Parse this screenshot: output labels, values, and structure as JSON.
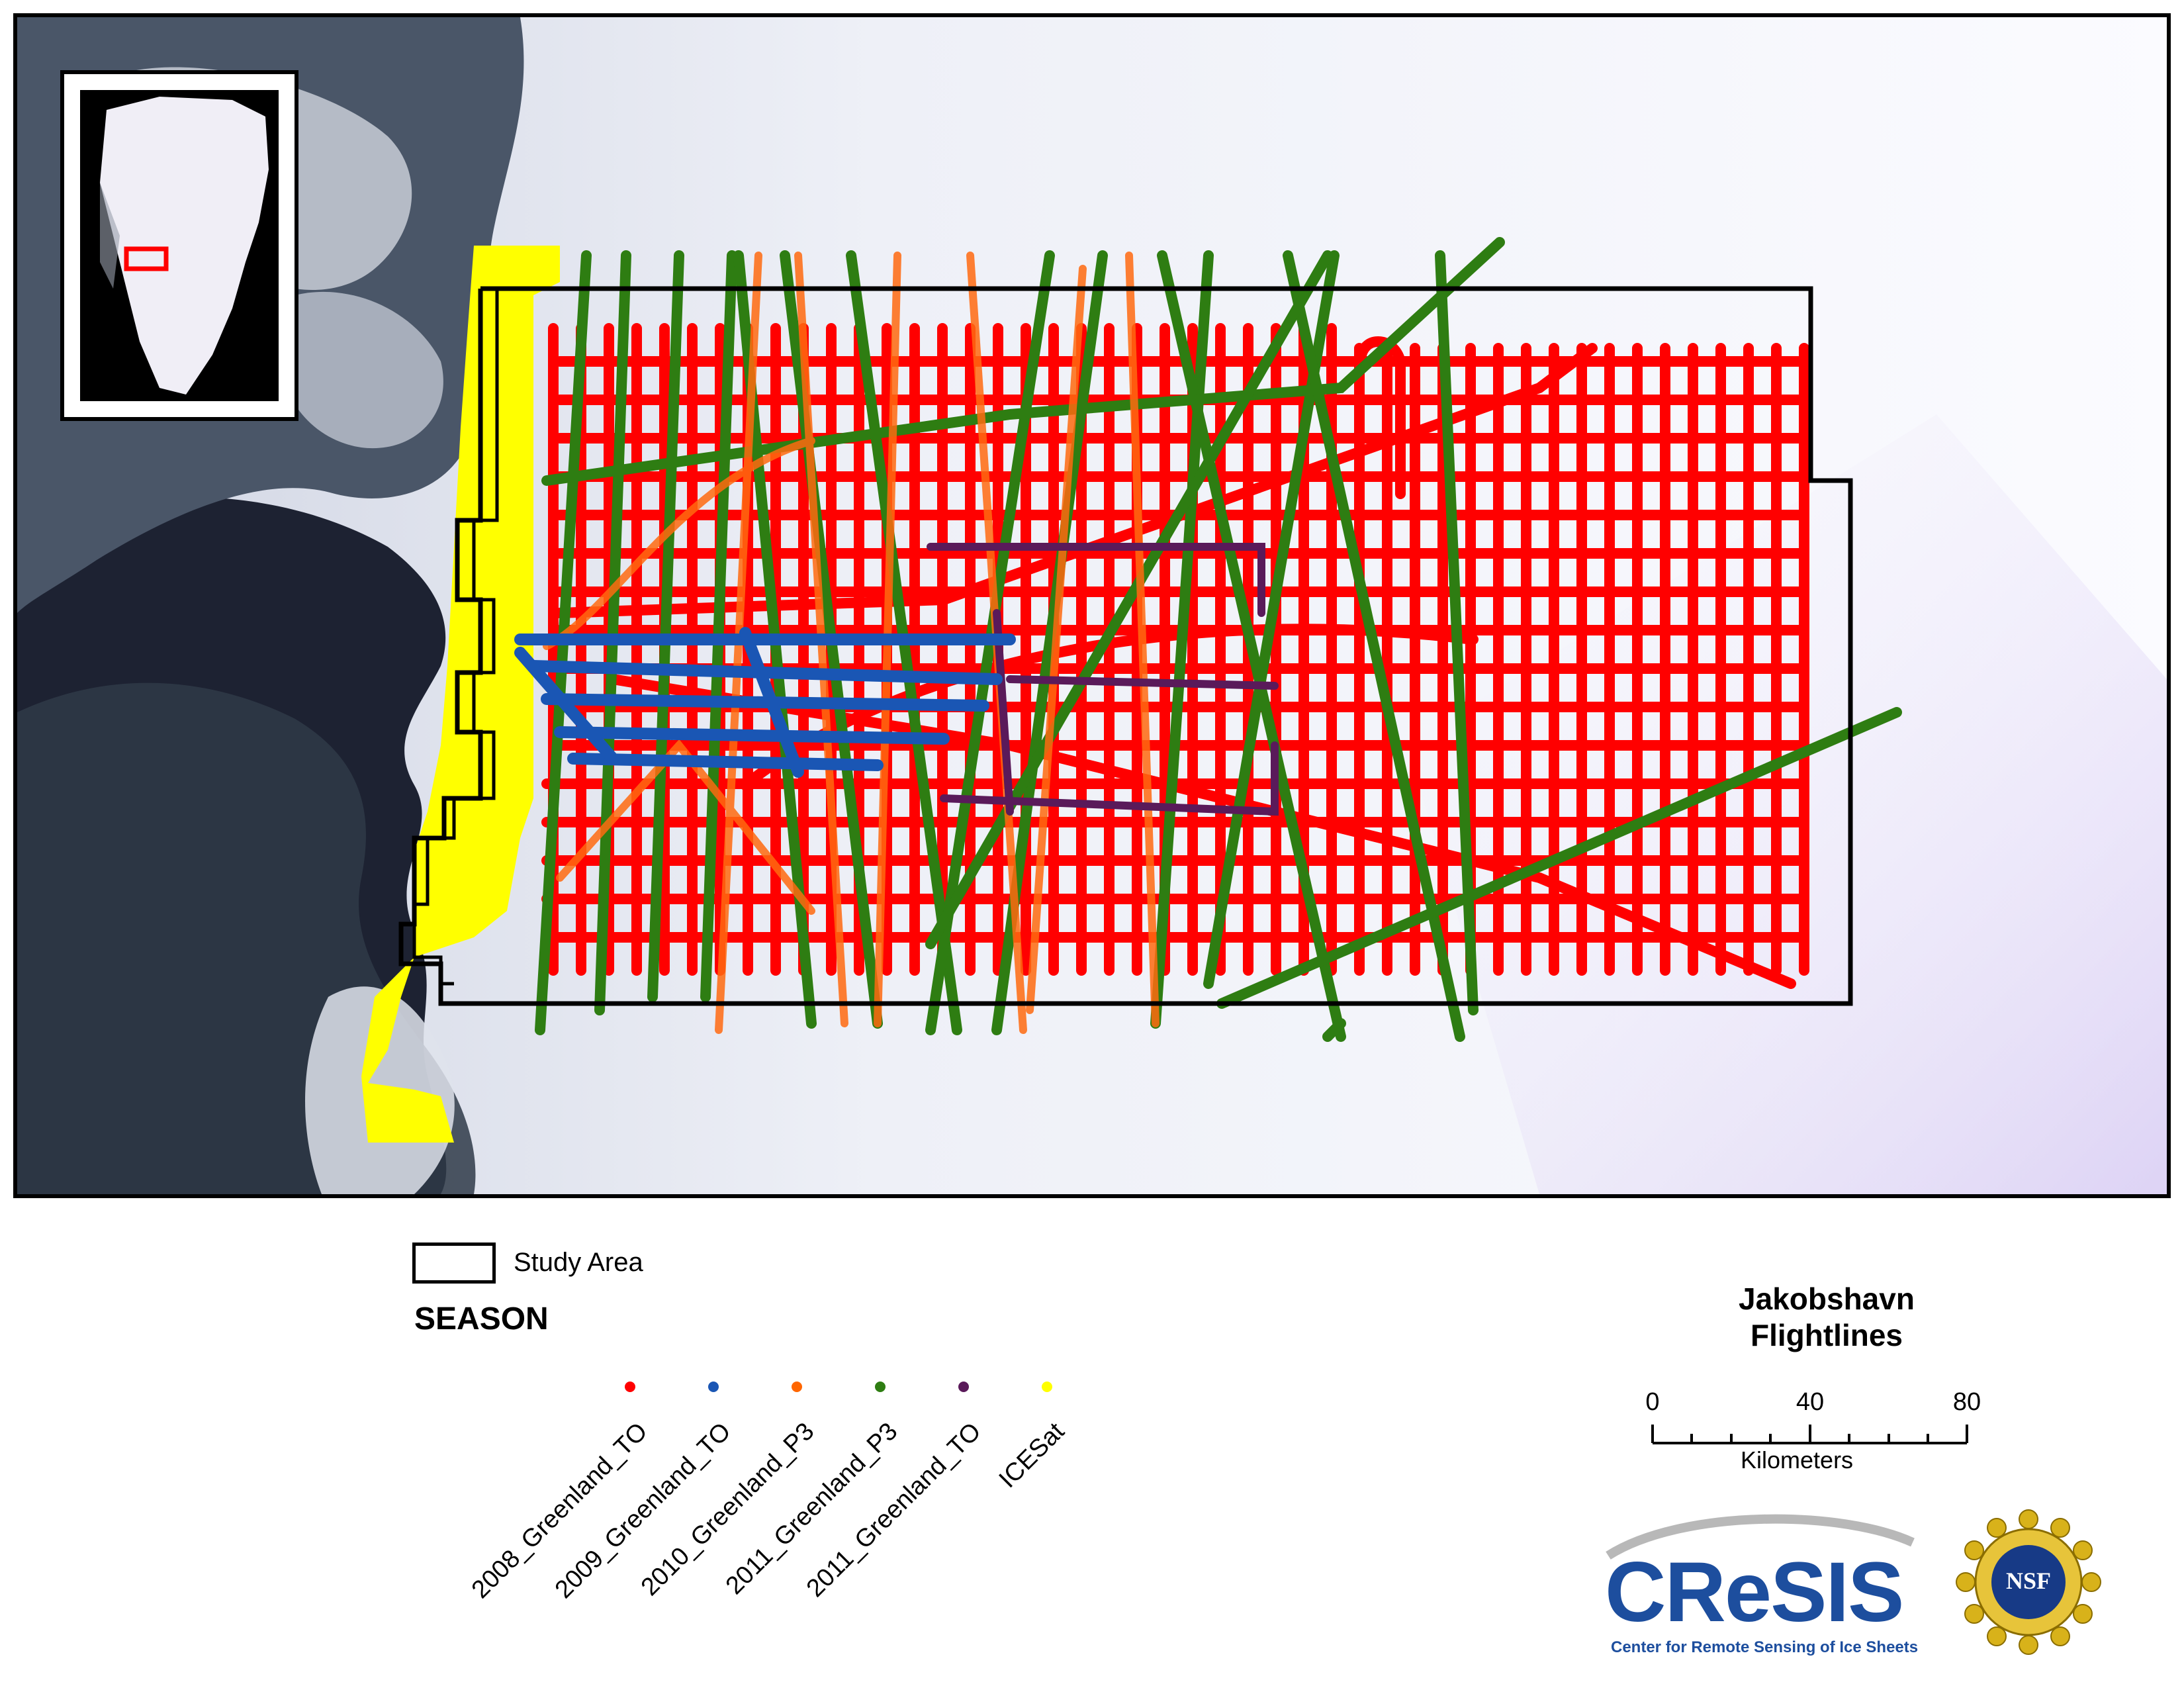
{
  "map": {
    "colors": {
      "ocean": "#1b2030",
      "ice": "#eef0f6",
      "land": "#3c4a5a",
      "study_area": "#000000"
    }
  },
  "legend": {
    "study_area_label": "Study Area",
    "season_heading": "SEASON",
    "seasons": [
      {
        "label": "2008_Greenland_TO",
        "color": "#ff0000"
      },
      {
        "label": "2009_Greenland_TO",
        "color": "#1a56b4"
      },
      {
        "label": "2010_Greenland_P3",
        "color": "#ff6600"
      },
      {
        "label": "2011_Greenland_P3",
        "color": "#2e7d12"
      },
      {
        "label": "2011_Greenland_TO",
        "color": "#5a1a5a"
      },
      {
        "label": "ICESat",
        "color": "#ffff00"
      }
    ]
  },
  "title": {
    "line1": "Jakobshavn",
    "line2": "Flightlines"
  },
  "scale_bar": {
    "tick_labels": [
      "0",
      "40",
      "80"
    ],
    "unit": "Kilometers"
  },
  "logos": {
    "cresis_name": "CReSIS",
    "cresis_tagline": "Center for Remote Sensing of Ice Sheets",
    "nsf_text": "NSF"
  },
  "icons": {
    "study_area_symbol": "rectangle-outline-icon",
    "season_marker": "dot-icon",
    "inset_greenland": "greenland-locator-icon"
  }
}
